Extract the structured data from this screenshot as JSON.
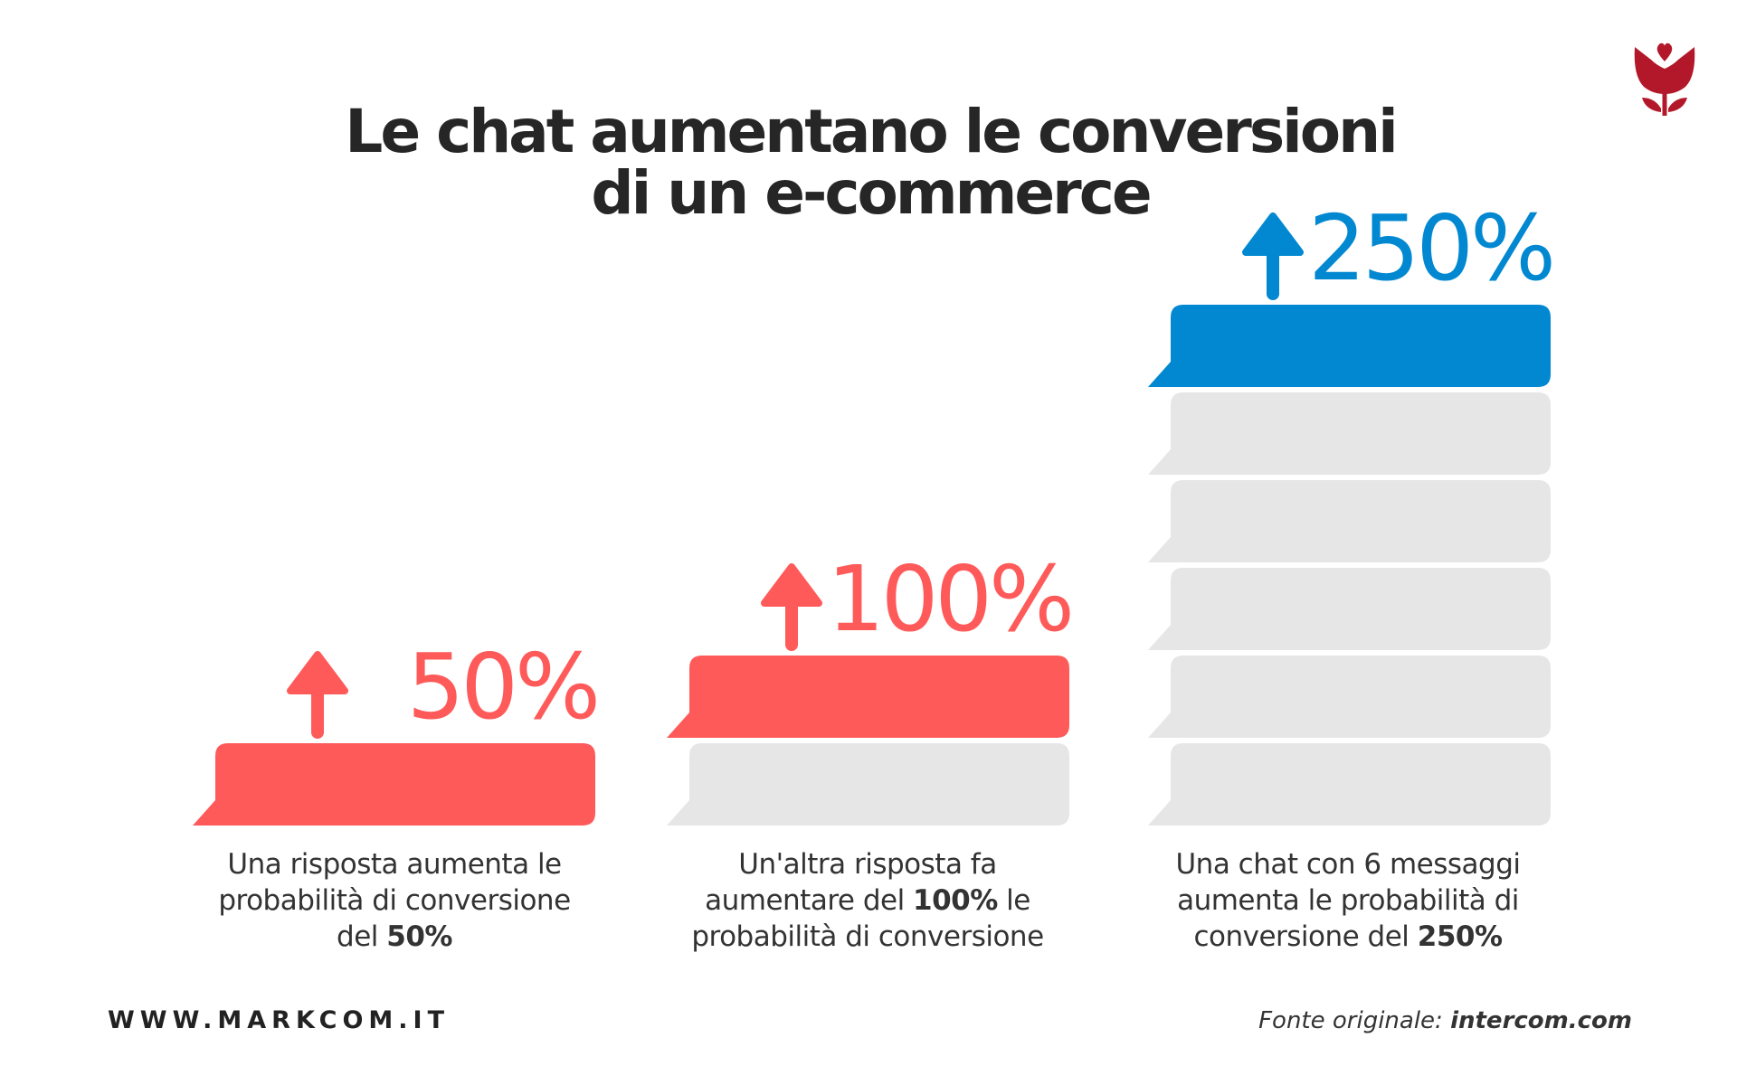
{
  "title": {
    "line1": "Le chat aumentano le conversioni",
    "line2": "di un e-commerce"
  },
  "chart_data": {
    "type": "bar",
    "categories": [
      "Una risposta",
      "Un'altra risposta",
      "Una chat con 6 messaggi"
    ],
    "values": [
      50,
      100,
      250
    ],
    "value_labels": [
      "50%",
      "100%",
      "250%"
    ],
    "message_bubbles": [
      1,
      2,
      6
    ],
    "colors": [
      "#FF5A5A",
      "#FF5A5A",
      "#0288D1"
    ],
    "bubble_background_color": "#E6E6E6"
  },
  "captions": [
    {
      "lines": [
        [
          "Una risposta aumenta le",
          ""
        ],
        [
          "probabilità di conversione",
          ""
        ],
        [
          "del ",
          "50%"
        ]
      ]
    },
    {
      "lines": [
        [
          "Un'altra risposta fa",
          ""
        ],
        [
          "aumentare del ",
          "100%",
          " le"
        ],
        [
          "probabilità di conversione",
          ""
        ]
      ]
    },
    {
      "lines": [
        [
          "Una chat con 6 messaggi",
          ""
        ],
        [
          "aumenta le probabilità di",
          ""
        ],
        [
          "conversione del ",
          "250%"
        ]
      ]
    }
  ],
  "footer": {
    "website": "WWW.MARKCOM.IT",
    "source_prefix": "Fonte originale: ",
    "source_name": "intercom.com"
  },
  "logo": {
    "icon": "tulip-heart-logo",
    "color": "#B3182A"
  }
}
